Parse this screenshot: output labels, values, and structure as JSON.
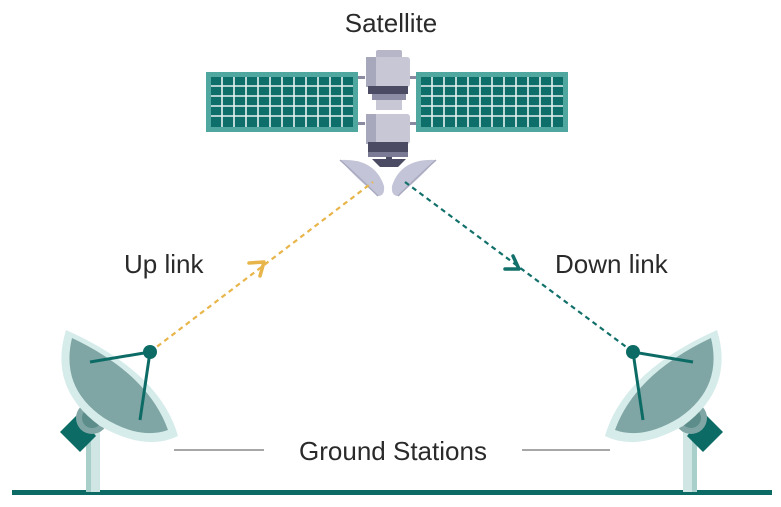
{
  "labels": {
    "satellite": "Satellite",
    "uplink": "Up link",
    "downlink": "Down link",
    "ground_stations": "Ground Stations"
  },
  "colors": {
    "teal_dark": "#0d6b66",
    "teal_mid": "#7fa6a4",
    "teal_light": "#d6ecea",
    "panel": "#4fa7a0",
    "uplink": "#e8b54a",
    "downlink": "#12706a",
    "body_gray": "#c7c7d6",
    "body_dark": "#4b4b63"
  }
}
